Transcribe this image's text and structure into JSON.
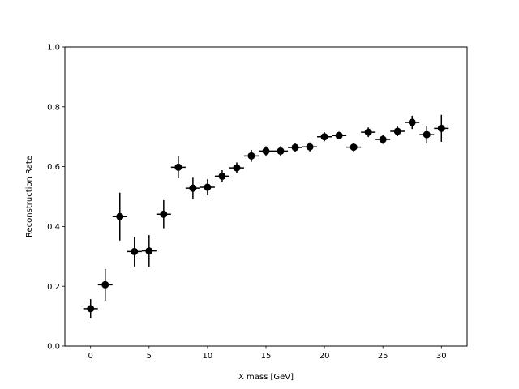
{
  "chart_data": {
    "type": "scatter",
    "xlabel": "X mass [GeV]",
    "ylabel": "Reconstruction Rate",
    "xlim": [
      -2.2,
      32.2
    ],
    "ylim": [
      0.0,
      1.0
    ],
    "x_ticks": [
      0,
      5,
      10,
      15,
      20,
      25,
      30
    ],
    "y_ticks": [
      0.0,
      0.2,
      0.4,
      0.6,
      0.8,
      1.0
    ],
    "x_tick_labels": [
      "0",
      "5",
      "10",
      "15",
      "20",
      "25",
      "30"
    ],
    "y_tick_labels": [
      "0.0",
      "0.2",
      "0.4",
      "0.6",
      "0.8",
      "1.0"
    ],
    "grid": false,
    "marker_color": "#000000",
    "x_bin_halfwidth": 0.625,
    "points": [
      {
        "x": 0.0,
        "y": 0.125,
        "yerr": 0.032
      },
      {
        "x": 1.25,
        "y": 0.205,
        "yerr": 0.053
      },
      {
        "x": 2.5,
        "y": 0.433,
        "yerr": 0.08
      },
      {
        "x": 3.75,
        "y": 0.316,
        "yerr": 0.05
      },
      {
        "x": 5.0,
        "y": 0.318,
        "yerr": 0.053
      },
      {
        "x": 6.25,
        "y": 0.441,
        "yerr": 0.047
      },
      {
        "x": 7.5,
        "y": 0.598,
        "yerr": 0.037
      },
      {
        "x": 8.75,
        "y": 0.528,
        "yerr": 0.035
      },
      {
        "x": 10.0,
        "y": 0.531,
        "yerr": 0.027
      },
      {
        "x": 11.25,
        "y": 0.568,
        "yerr": 0.02
      },
      {
        "x": 12.5,
        "y": 0.596,
        "yerr": 0.018
      },
      {
        "x": 13.75,
        "y": 0.636,
        "yerr": 0.02
      },
      {
        "x": 15.0,
        "y": 0.652,
        "yerr": 0.016
      },
      {
        "x": 16.25,
        "y": 0.652,
        "yerr": 0.016
      },
      {
        "x": 17.5,
        "y": 0.664,
        "yerr": 0.016
      },
      {
        "x": 18.75,
        "y": 0.666,
        "yerr": 0.015
      },
      {
        "x": 20.0,
        "y": 0.7,
        "yerr": 0.015
      },
      {
        "x": 21.25,
        "y": 0.704,
        "yerr": 0.013
      },
      {
        "x": 22.5,
        "y": 0.665,
        "yerr": 0.014
      },
      {
        "x": 23.75,
        "y": 0.715,
        "yerr": 0.016
      },
      {
        "x": 25.0,
        "y": 0.691,
        "yerr": 0.015
      },
      {
        "x": 26.25,
        "y": 0.718,
        "yerr": 0.016
      },
      {
        "x": 27.5,
        "y": 0.748,
        "yerr": 0.022
      },
      {
        "x": 28.75,
        "y": 0.707,
        "yerr": 0.03
      },
      {
        "x": 30.0,
        "y": 0.728,
        "yerr": 0.045
      }
    ]
  }
}
